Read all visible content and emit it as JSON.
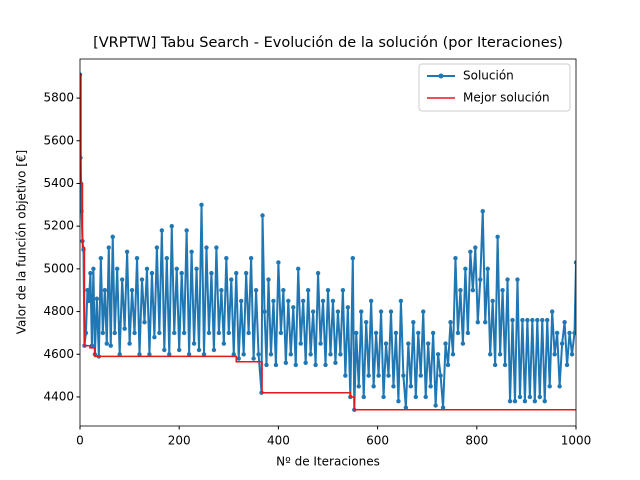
{
  "chart_data": {
    "type": "line",
    "title": "[VRPTW] Tabu Search - Evolución de la solución (por Iteraciones)",
    "xlabel": "Nº de Iteraciones",
    "ylabel": "Valor de la función objetivo [€]",
    "xlim": [
      0,
      1000
    ],
    "ylim": [
      4264,
      5983
    ],
    "xticks": [
      0,
      200,
      400,
      600,
      800,
      1000
    ],
    "yticks": [
      4400,
      4600,
      4800,
      5000,
      5200,
      5400,
      5600,
      5800
    ],
    "legend": "upper right",
    "series": [
      {
        "name": "Solución",
        "color": "#1f77b4",
        "marker": true,
        "x": [
          0,
          1,
          2,
          3,
          5,
          7,
          9,
          12,
          15,
          18,
          21,
          24,
          27,
          30,
          34,
          38,
          42,
          46,
          50,
          54,
          58,
          62,
          66,
          70,
          75,
          80,
          85,
          90,
          95,
          100,
          105,
          110,
          115,
          120,
          125,
          130,
          135,
          140,
          145,
          150,
          155,
          160,
          165,
          170,
          175,
          180,
          185,
          190,
          195,
          200,
          205,
          210,
          215,
          220,
          225,
          230,
          235,
          240,
          245,
          250,
          255,
          260,
          265,
          270,
          275,
          280,
          285,
          290,
          295,
          300,
          305,
          310,
          315,
          320,
          325,
          330,
          335,
          340,
          345,
          350,
          355,
          360,
          366,
          368,
          372,
          376,
          380,
          385,
          390,
          395,
          400,
          405,
          410,
          415,
          420,
          425,
          430,
          435,
          440,
          445,
          450,
          455,
          460,
          465,
          470,
          475,
          480,
          485,
          490,
          495,
          500,
          505,
          510,
          515,
          520,
          525,
          530,
          535,
          540,
          545,
          550,
          553,
          557,
          562,
          567,
          572,
          577,
          582,
          587,
          592,
          597,
          602,
          607,
          612,
          617,
          622,
          627,
          632,
          637,
          642,
          647,
          652,
          657,
          662,
          667,
          672,
          677,
          682,
          687,
          692,
          697,
          702,
          707,
          712,
          717,
          722,
          727,
          732,
          737,
          742,
          747,
          752,
          757,
          762,
          767,
          772,
          777,
          782,
          787,
          792,
          797,
          802,
          807,
          812,
          817,
          822,
          827,
          832,
          837,
          842,
          847,
          852,
          857,
          862,
          867,
          872,
          877,
          882,
          887,
          892,
          897,
          902,
          907,
          912,
          917,
          922,
          927,
          932,
          937,
          942,
          947,
          952,
          957,
          962,
          967,
          972,
          977,
          982,
          987,
          992,
          997,
          1000
        ],
        "values": [
          5910,
          5520,
          5400,
          5270,
          5130,
          5090,
          4640,
          4700,
          4900,
          4850,
          4980,
          4640,
          5000,
          4600,
          4860,
          4590,
          5050,
          4700,
          4900,
          4650,
          5100,
          4640,
          5150,
          4700,
          5000,
          4600,
          4950,
          4720,
          5080,
          4650,
          4900,
          4700,
          5050,
          4600,
          4950,
          4750,
          5000,
          4600,
          4980,
          4680,
          5100,
          4700,
          5180,
          4620,
          5050,
          4600,
          5200,
          4700,
          5000,
          4620,
          4980,
          4700,
          5180,
          4600,
          5080,
          4650,
          5000,
          4620,
          5300,
          4600,
          5100,
          4700,
          4980,
          4620,
          5100,
          4700,
          4900,
          4650,
          5050,
          4700,
          4950,
          4600,
          4980,
          4580,
          4850,
          4600,
          4980,
          4700,
          5050,
          4580,
          4900,
          4600,
          4420,
          5250,
          4800,
          4550,
          4950,
          4600,
          4850,
          4550,
          5030,
          4700,
          4900,
          4560,
          4850,
          4600,
          4820,
          4550,
          5000,
          4650,
          4850,
          4560,
          4900,
          4600,
          4800,
          4550,
          4980,
          4650,
          4850,
          4550,
          4900,
          4600,
          4850,
          4560,
          4800,
          4600,
          4900,
          4500,
          4820,
          4400,
          5050,
          4340,
          4700,
          4450,
          4800,
          4400,
          4750,
          4500,
          4850,
          4450,
          4700,
          4500,
          4800,
          4400,
          4650,
          4500,
          4800,
          4450,
          4700,
          4380,
          4850,
          4500,
          4350,
          4650,
          4450,
          4750,
          4400,
          4700,
          4500,
          4800,
          4400,
          4650,
          4450,
          4700,
          4360,
          4600,
          4500,
          4350,
          4650,
          4550,
          4750,
          4600,
          5050,
          4700,
          4900,
          4650,
          5000,
          4700,
          5080,
          4900,
          5100,
          4750,
          4950,
          5270,
          4750,
          5000,
          4600,
          4850,
          4550,
          5150,
          4600,
          4900,
          4550,
          4950,
          4380,
          4760,
          4380,
          4950,
          4400,
          4760,
          4380,
          4760,
          4400,
          4760,
          4380,
          4760,
          4400,
          4760,
          4380,
          4760,
          4450,
          4800,
          4600,
          4700,
          4450,
          4650,
          4750,
          4550,
          4700,
          4600,
          4700,
          5030
        ]
      },
      {
        "name": "Mejor solución",
        "color": "#e31a1c",
        "marker": false,
        "drawstyle": "steps-post",
        "x": [
          0,
          2,
          5,
          9,
          20,
          30,
          315,
          367,
          545,
          553
        ],
        "values": [
          5910,
          5400,
          5100,
          4640,
          4630,
          4590,
          4565,
          4420,
          4400,
          4340
        ]
      }
    ]
  }
}
